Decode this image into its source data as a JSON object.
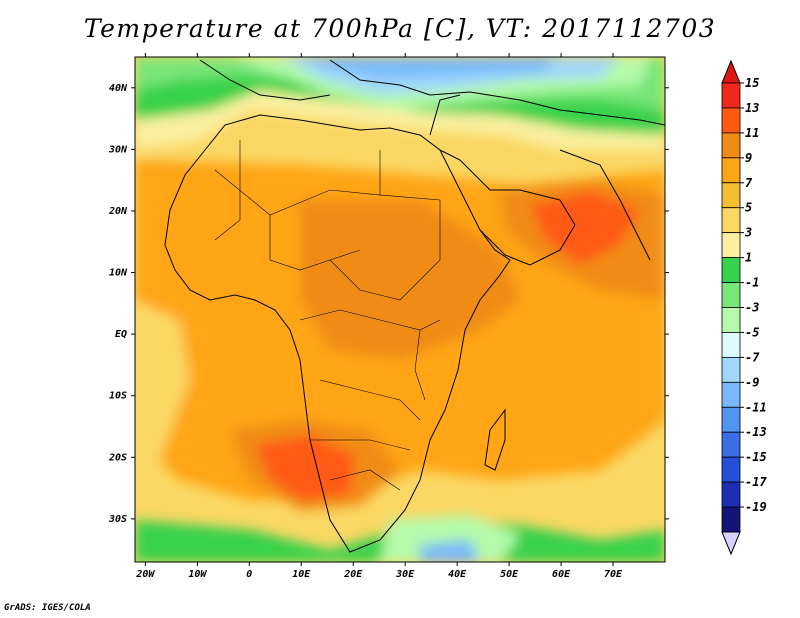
{
  "title": "Temperature at 700hPa [C], VT: 2017112703",
  "footer": "GrADS: IGES/COLA",
  "map": {
    "lon_range": [
      -22,
      80
    ],
    "lat_range": [
      -37,
      45
    ],
    "lat_ticks": [
      {
        "value": 40,
        "label": "40N"
      },
      {
        "value": 30,
        "label": "30N"
      },
      {
        "value": 20,
        "label": "20N"
      },
      {
        "value": 10,
        "label": "10N"
      },
      {
        "value": 0,
        "label": "EQ"
      },
      {
        "value": -10,
        "label": "10S"
      },
      {
        "value": -20,
        "label": "20S"
      },
      {
        "value": -30,
        "label": "30S"
      }
    ],
    "lon_ticks": [
      {
        "value": -20,
        "label": "20W"
      },
      {
        "value": -10,
        "label": "10W"
      },
      {
        "value": 0,
        "label": "0"
      },
      {
        "value": 10,
        "label": "10E"
      },
      {
        "value": 20,
        "label": "20E"
      },
      {
        "value": 30,
        "label": "30E"
      },
      {
        "value": 40,
        "label": "40E"
      },
      {
        "value": 50,
        "label": "50E"
      },
      {
        "value": 60,
        "label": "60E"
      },
      {
        "value": 70,
        "label": "70E"
      }
    ]
  },
  "colorbar": {
    "labels": [
      "15",
      "13",
      "11",
      "9",
      "7",
      "5",
      "3",
      "1",
      "-1",
      "-3",
      "-5",
      "-7",
      "-9",
      "-11",
      "-13",
      "-15",
      "-17",
      "-19"
    ],
    "colors": [
      "#f0281e",
      "#ff5a14",
      "#f08c14",
      "#ffa518",
      "#f5be32",
      "#fad764",
      "#faf0a0",
      "#37d24b",
      "#78e678",
      "#b4faaa",
      "#dcfafa",
      "#a0d7fa",
      "#78b9fa",
      "#5096f0",
      "#3c6ee6",
      "#2350d7",
      "#1e2fb4",
      "#141478"
    ],
    "over_color": "#e11414",
    "under_color": "#d7d2ff"
  }
}
